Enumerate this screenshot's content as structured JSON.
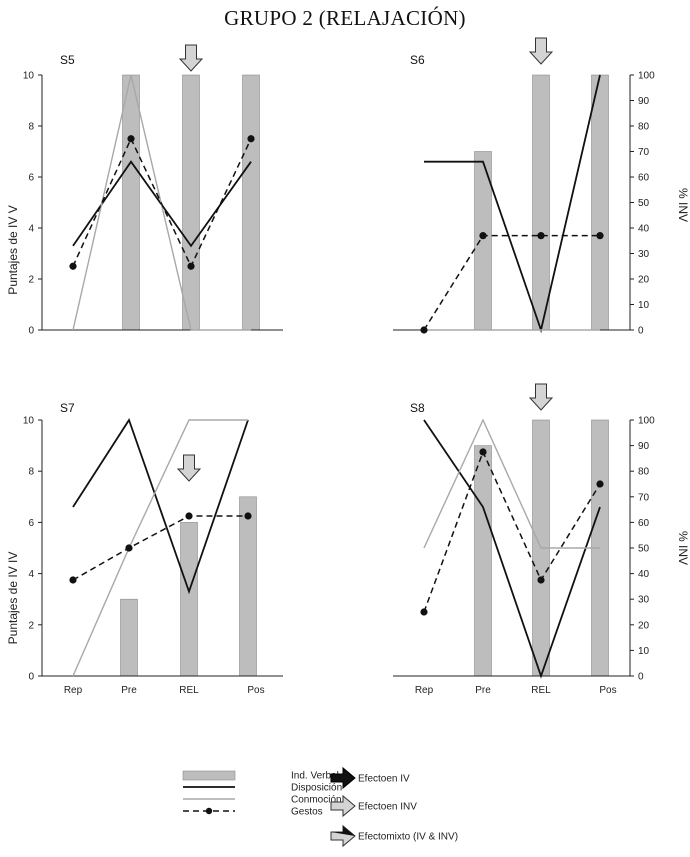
{
  "page_title": "GRUPO 2 (RELAJACIÓN)",
  "colors": {
    "bar": "#bdbdbd",
    "bar_stroke": "#8a8a8a",
    "disposicion": "#111111",
    "conmocion": "#a8a8a8",
    "gestos": "#111111",
    "arrow_gray": "#d4d4d4",
    "arrow_black": "#111111"
  },
  "categories": [
    "Rep",
    "Pre",
    "REL",
    "Pos"
  ],
  "axes": {
    "left_ticks": [
      "0",
      "2",
      "4",
      "6",
      "8",
      "10"
    ],
    "right_ticks": [
      "0",
      "10",
      "20",
      "30",
      "40",
      "50",
      "60",
      "70",
      "80",
      "90",
      "100"
    ],
    "left_label_top": "Puntajes de IV   V",
    "left_label_bottom": "Puntajes de IV   IV",
    "right_label": "% INV",
    "left_range": [
      0,
      10
    ],
    "right_range": [
      0,
      100
    ]
  },
  "chart_data": [
    {
      "id": "S5",
      "type": "bar+line",
      "label": "S5",
      "categories": [
        "Rep",
        "Pre",
        "REL",
        "Pos"
      ],
      "show_left_axis": true,
      "show_right_axis": false,
      "show_x_labels": false,
      "arrow": {
        "category_index": 2,
        "style": "gray"
      },
      "series": [
        {
          "name": "Ind. Verbal",
          "kind": "bar",
          "values": [
            null,
            10,
            10,
            10
          ]
        },
        {
          "name": "Disposición",
          "kind": "line",
          "values": [
            3.3,
            6.6,
            3.3,
            6.6
          ]
        },
        {
          "name": "Conmoción",
          "kind": "line",
          "values": [
            0,
            10,
            0,
            0
          ]
        },
        {
          "name": "Gestos",
          "kind": "dashed-dot",
          "values": [
            2.5,
            7.5,
            2.5,
            7.5
          ]
        }
      ]
    },
    {
      "id": "S6",
      "type": "bar+line",
      "label": "S6",
      "categories": [
        "Rep",
        "Pre",
        "REL",
        "Pos"
      ],
      "show_left_axis": false,
      "show_right_axis": true,
      "show_x_labels": false,
      "arrow": {
        "category_index": 2,
        "style": "gray"
      },
      "series": [
        {
          "name": "Ind. Verbal",
          "kind": "bar",
          "values": [
            null,
            7,
            10,
            10
          ]
        },
        {
          "name": "Disposición",
          "kind": "line",
          "values": [
            6.6,
            6.6,
            0,
            10
          ]
        },
        {
          "name": "Conmoción",
          "kind": "line",
          "values": [
            0,
            0,
            0,
            0
          ]
        },
        {
          "name": "Gestos",
          "kind": "dashed-dot",
          "values": [
            0,
            3.7,
            3.7,
            3.7
          ]
        }
      ]
    },
    {
      "id": "S7",
      "type": "bar+line",
      "label": "S7",
      "categories": [
        "Rep",
        "Pre",
        "REL",
        "Pos"
      ],
      "show_left_axis": true,
      "show_right_axis": false,
      "show_x_labels": true,
      "arrow": {
        "category_index": 2,
        "style": "gray"
      },
      "series": [
        {
          "name": "Ind. Verbal",
          "kind": "bar",
          "values": [
            null,
            3,
            6,
            7
          ]
        },
        {
          "name": "Disposición",
          "kind": "line",
          "values": [
            6.6,
            10,
            3.3,
            10
          ]
        },
        {
          "name": "Conmoción",
          "kind": "line",
          "values": [
            0,
            5,
            10,
            10
          ]
        },
        {
          "name": "Gestos",
          "kind": "dashed-dot",
          "values": [
            3.75,
            5,
            6.25,
            6.25
          ]
        }
      ]
    },
    {
      "id": "S8",
      "type": "bar+line",
      "label": "S8",
      "categories": [
        "Rep",
        "Pre",
        "REL",
        "Pos"
      ],
      "show_left_axis": false,
      "show_right_axis": true,
      "show_x_labels": true,
      "arrow": {
        "category_index": 2,
        "style": "gray"
      },
      "series": [
        {
          "name": "Ind. Verbal",
          "kind": "bar",
          "values": [
            null,
            9,
            10,
            10
          ]
        },
        {
          "name": "Disposición",
          "kind": "line",
          "values": [
            10,
            6.6,
            0,
            6.6
          ]
        },
        {
          "name": "Conmoción",
          "kind": "line",
          "values": [
            5,
            10,
            5,
            5
          ]
        },
        {
          "name": "Gestos",
          "kind": "dashed-dot",
          "values": [
            2.5,
            8.75,
            3.75,
            7.5
          ]
        }
      ]
    }
  ],
  "legend": {
    "items": [
      {
        "label": "Ind. Verbal",
        "kind": "bar"
      },
      {
        "label": "Disposición",
        "kind": "line"
      },
      {
        "label": "Conmoción",
        "kind": "gray-line"
      },
      {
        "label": "Gestos",
        "kind": "dashed-dot"
      }
    ],
    "arrows": [
      {
        "label": "Efectoen IV",
        "style": "black"
      },
      {
        "label": "Efectoen INV",
        "style": "gray"
      },
      {
        "label": "Efectomixto (IV & INV)",
        "style": "mixed"
      }
    ]
  }
}
